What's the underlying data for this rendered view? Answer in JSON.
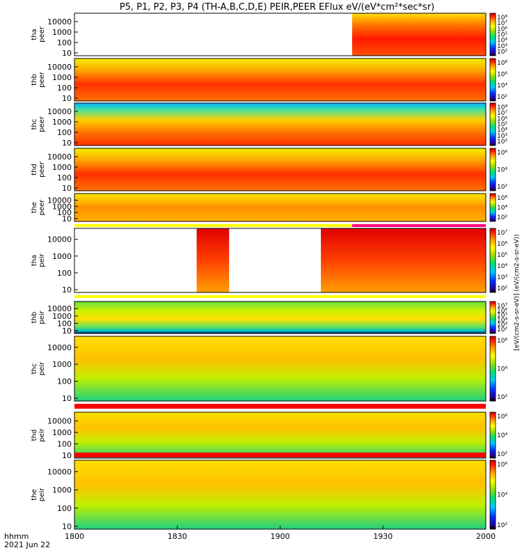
{
  "title": "P5, P1, P2, P3, P4 (TH-A,B,C,D,E) PEIR,PEER EFlux eV/(eV*cm²*sec*sr)",
  "footer": {
    "time_label": "hhmm",
    "date_label": "2021 Jun 22"
  },
  "colorbar_label": "[eV/(cm2-s-sr-eV)] (eV/(cm2-s-sr-eV))",
  "chart_data": {
    "type": "heatmap",
    "x_ticks": [
      "1800",
      "1830",
      "1900",
      "1930",
      "2000"
    ],
    "y_ticks": [
      "10",
      "100",
      "1000",
      "10000"
    ],
    "panels": [
      {
        "ylabel": [
          "tha",
          "peer"
        ],
        "cb_ticks": [
          "10²",
          "10³",
          "10⁴",
          "10⁵",
          "10⁶",
          "10⁷",
          "10⁸"
        ]
      },
      {
        "ylabel": [
          "thb",
          "peer"
        ],
        "cb_ticks": [
          "10²",
          "10⁴",
          "10⁶",
          "10⁸"
        ]
      },
      {
        "ylabel": [
          "thc",
          "peer"
        ],
        "cb_ticks": [
          "10²",
          "10³",
          "10⁴",
          "10⁵",
          "10⁶",
          "10⁷",
          "10⁸"
        ]
      },
      {
        "ylabel": [
          "thd",
          "peer"
        ],
        "cb_ticks": [
          "10²",
          "10⁴",
          "10⁶"
        ]
      },
      {
        "ylabel": [
          "the",
          "peer"
        ],
        "cb_ticks": [
          "10²",
          "10⁴",
          "10⁶"
        ]
      },
      {
        "ylabel": [
          "tha",
          "peir"
        ],
        "cb_ticks": [
          "10²",
          "10³",
          "10⁴",
          "10⁵",
          "10⁶",
          "10⁷"
        ]
      },
      {
        "ylabel": [
          "thb",
          "peir"
        ],
        "cb_ticks": [
          "10²",
          "10³",
          "10⁴",
          "10⁵",
          "10⁶",
          "10⁷"
        ]
      },
      {
        "ylabel": [
          "thc",
          "peir"
        ],
        "cb_ticks": [
          "10²",
          "10⁴",
          "10⁶"
        ]
      },
      {
        "ylabel": [
          "thd",
          "peir"
        ],
        "cb_ticks": [
          "10²",
          "10⁴",
          "10⁶"
        ]
      },
      {
        "ylabel": [
          "the",
          "peir"
        ],
        "cb_ticks": [
          "10²",
          "10⁴",
          "10⁶"
        ]
      }
    ]
  }
}
